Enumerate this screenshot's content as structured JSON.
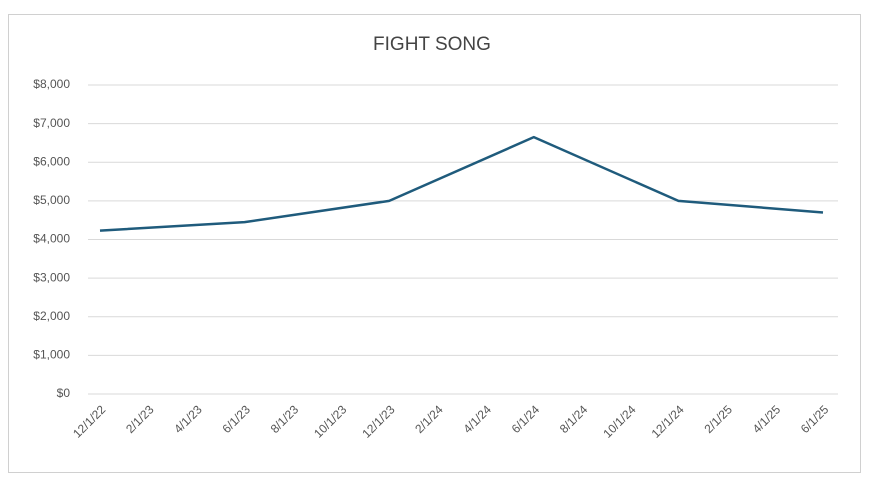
{
  "chart_data": {
    "type": "line",
    "title": "FIGHT SONG",
    "x": [
      "12/1/22",
      "6/1/23",
      "12/1/23",
      "6/1/24",
      "12/1/24",
      "6/1/25"
    ],
    "series": [
      {
        "name": "FIGHT SONG",
        "color": "#1f5b7c",
        "values": [
          4230,
          4450,
          5000,
          6650,
          5000,
          4700
        ]
      }
    ],
    "xticks": [
      "12/1/22",
      "2/1/23",
      "4/1/23",
      "6/1/23",
      "8/1/23",
      "10/1/23",
      "12/1/23",
      "2/1/24",
      "4/1/24",
      "6/1/24",
      "8/1/24",
      "10/1/24",
      "12/1/24",
      "2/1/25",
      "4/1/25",
      "6/1/25"
    ],
    "ylim": [
      0,
      8000
    ],
    "yticks": [
      {
        "value": 0,
        "label": "$0"
      },
      {
        "value": 1000,
        "label": "$1,000"
      },
      {
        "value": 2000,
        "label": "$2,000"
      },
      {
        "value": 3000,
        "label": "$3,000"
      },
      {
        "value": 4000,
        "label": "$4,000"
      },
      {
        "value": 5000,
        "label": "$5,000"
      },
      {
        "value": 6000,
        "label": "$6,000"
      },
      {
        "value": 7000,
        "label": "$7,000"
      },
      {
        "value": 8000,
        "label": "$8,000"
      }
    ],
    "grid": true
  }
}
